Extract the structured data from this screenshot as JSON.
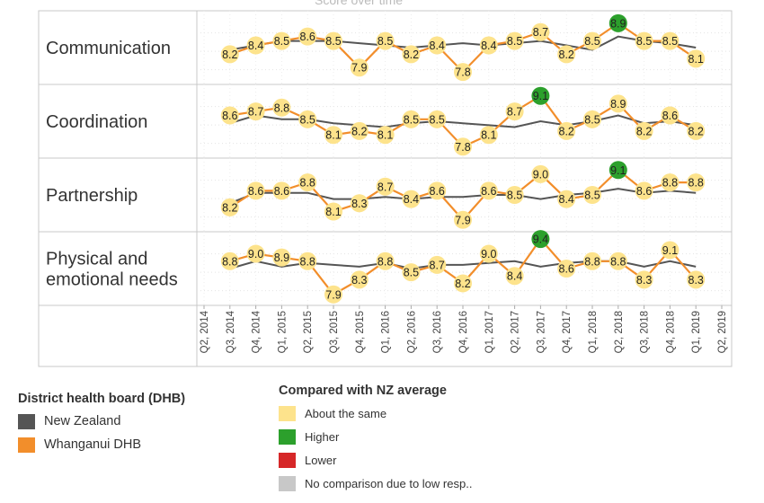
{
  "header": {
    "title": "Score over time"
  },
  "chart_data": {
    "type": "line",
    "x": [
      "Q2, 2014",
      "Q3, 2014",
      "Q4, 2014",
      "Q1, 2015",
      "Q2, 2015",
      "Q3, 2015",
      "Q4, 2015",
      "Q1, 2016",
      "Q2, 2016",
      "Q3, 2016",
      "Q4, 2016",
      "Q1, 2017",
      "Q2, 2017",
      "Q3, 2017",
      "Q4, 2017",
      "Q1, 2018",
      "Q2, 2018",
      "Q3, 2018",
      "Q4, 2018",
      "Q1, 2019",
      "Q2, 2019"
    ],
    "facets": [
      {
        "name": "Communication",
        "ylim": [
          7.6,
          9.1
        ],
        "series": [
          {
            "name": "New Zealand",
            "values": [
              null,
              8.3,
              8.4,
              8.5,
              8.5,
              8.5,
              8.45,
              8.4,
              8.35,
              8.4,
              8.45,
              8.4,
              8.45,
              8.5,
              8.4,
              8.3,
              8.6,
              8.5,
              8.45,
              8.35,
              null
            ]
          },
          {
            "name": "Whanganui DHB",
            "values": [
              null,
              8.2,
              8.4,
              8.5,
              8.6,
              8.5,
              7.9,
              8.5,
              8.2,
              8.4,
              7.8,
              8.4,
              8.5,
              8.7,
              8.2,
              8.5,
              8.9,
              8.5,
              8.5,
              8.1,
              null
            ],
            "status": [
              "",
              "same",
              "same",
              "same",
              "same",
              "same",
              "same",
              "same",
              "same",
              "same",
              "same",
              "same",
              "same",
              "same",
              "same",
              "same",
              "higher",
              "same",
              "same",
              "same",
              ""
            ]
          }
        ]
      },
      {
        "name": "Coordination",
        "ylim": [
          7.6,
          9.3
        ],
        "series": [
          {
            "name": "New Zealand",
            "values": [
              null,
              8.4,
              8.6,
              8.5,
              8.5,
              8.4,
              8.35,
              8.3,
              8.4,
              8.45,
              8.4,
              8.35,
              8.3,
              8.45,
              8.35,
              8.45,
              8.6,
              8.4,
              8.45,
              8.35,
              null
            ]
          },
          {
            "name": "Whanganui DHB",
            "values": [
              null,
              8.6,
              8.7,
              8.8,
              8.5,
              8.1,
              8.2,
              8.1,
              8.5,
              8.5,
              7.8,
              8.1,
              8.7,
              9.1,
              8.2,
              8.5,
              8.9,
              8.2,
              8.6,
              8.2,
              null
            ],
            "status": [
              "",
              "same",
              "same",
              "same",
              "same",
              "same",
              "same",
              "same",
              "same",
              "same",
              "same",
              "same",
              "same",
              "higher",
              "same",
              "same",
              "same",
              "same",
              "same",
              "same",
              ""
            ]
          }
        ]
      },
      {
        "name": "Partnership",
        "ylim": [
          7.7,
          9.3
        ],
        "series": [
          {
            "name": "New Zealand",
            "values": [
              null,
              8.3,
              8.55,
              8.55,
              8.55,
              8.4,
              8.4,
              8.45,
              8.4,
              8.45,
              8.45,
              8.5,
              8.5,
              8.4,
              8.5,
              8.55,
              8.65,
              8.55,
              8.6,
              8.55,
              null
            ]
          },
          {
            "name": "Whanganui DHB",
            "values": [
              null,
              8.2,
              8.6,
              8.6,
              8.8,
              8.1,
              8.3,
              8.7,
              8.4,
              8.6,
              7.9,
              8.6,
              8.5,
              9.0,
              8.4,
              8.5,
              9.1,
              8.6,
              8.8,
              8.8,
              null
            ],
            "status": [
              "",
              "same",
              "same",
              "same",
              "same",
              "same",
              "same",
              "same",
              "same",
              "same",
              "same",
              "same",
              "same",
              "same",
              "same",
              "same",
              "higher",
              "same",
              "same",
              "same",
              ""
            ]
          }
        ]
      },
      {
        "name": "Physical and emotional needs",
        "ylim": [
          7.7,
          9.5
        ],
        "series": [
          {
            "name": "New Zealand",
            "values": [
              null,
              8.6,
              8.8,
              8.65,
              8.75,
              8.7,
              8.65,
              8.75,
              8.6,
              8.7,
              8.7,
              8.75,
              8.8,
              8.65,
              8.75,
              8.8,
              8.8,
              8.65,
              8.8,
              8.65,
              null
            ]
          },
          {
            "name": "Whanganui DHB",
            "values": [
              null,
              8.8,
              9.0,
              8.9,
              8.8,
              7.9,
              8.3,
              8.8,
              8.5,
              8.7,
              8.2,
              9.0,
              8.4,
              9.4,
              8.6,
              8.8,
              8.8,
              8.3,
              9.1,
              8.3,
              null
            ],
            "status": [
              "",
              "same",
              "same",
              "same",
              "same",
              "same",
              "same",
              "same",
              "same",
              "same",
              "same",
              "same",
              "same",
              "higher",
              "same",
              "same",
              "same",
              "same",
              "same",
              "same",
              ""
            ]
          }
        ]
      }
    ]
  },
  "legend_dhb": {
    "title": "District health board (DHB)",
    "items": [
      {
        "label": "New Zealand",
        "color": "#555555"
      },
      {
        "label": "Whanganui DHB",
        "color": "#f28e2b"
      }
    ]
  },
  "legend_compare": {
    "title": "Compared with NZ average",
    "items": [
      {
        "label": "About the same",
        "color": "#fde38c"
      },
      {
        "label": "Higher",
        "color": "#2ca02c"
      },
      {
        "label": "Lower",
        "color": "#d62728"
      },
      {
        "label": "No comparison due to low resp..",
        "color": "#c8c8c8"
      }
    ]
  },
  "colors": {
    "nz_line": "#555555",
    "dhb_line": "#f28e2b",
    "same": "#fde38c",
    "higher": "#2ca02c",
    "lower": "#d62728"
  }
}
